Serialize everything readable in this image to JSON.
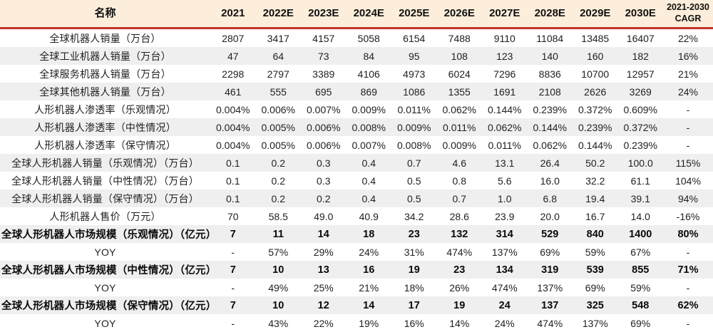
{
  "colors": {
    "header_bg": "#FCEEDB",
    "header_rule_red": "#C2332E",
    "row_alt_bg": "#EFEFEF",
    "row_bg": "#FFFFFF",
    "bottom_rule": "#2B2B2B",
    "text": "#1F1F1F"
  },
  "table": {
    "header": {
      "name_label": "名称",
      "columns": [
        "2021",
        "2022E",
        "2023E",
        "2024E",
        "2025E",
        "2026E",
        "2027E",
        "2028E",
        "2029E",
        "2030E"
      ],
      "cagr_line1": "2021-2030",
      "cagr_line2": "CAGR"
    },
    "rows": [
      {
        "label": "全球机器人销量（万台）",
        "bold": false,
        "values": [
          "2807",
          "3417",
          "4157",
          "5058",
          "6154",
          "7488",
          "9110",
          "11084",
          "13485",
          "16407"
        ],
        "cagr": "22%"
      },
      {
        "label": "全球工业机器人销量（万台）",
        "bold": false,
        "values": [
          "47",
          "64",
          "73",
          "84",
          "95",
          "108",
          "123",
          "140",
          "160",
          "182"
        ],
        "cagr": "16%"
      },
      {
        "label": "全球服务机器人销量（万台）",
        "bold": false,
        "values": [
          "2298",
          "2797",
          "3389",
          "4106",
          "4973",
          "6024",
          "7296",
          "8836",
          "10700",
          "12957"
        ],
        "cagr": "21%"
      },
      {
        "label": "全球其他机器人销量（万台）",
        "bold": false,
        "values": [
          "461",
          "555",
          "695",
          "869",
          "1086",
          "1355",
          "1691",
          "2108",
          "2626",
          "3269"
        ],
        "cagr": "24%"
      },
      {
        "label": "人形机器人渗透率（乐观情况）",
        "bold": false,
        "values": [
          "0.004%",
          "0.006%",
          "0.007%",
          "0.009%",
          "0.011%",
          "0.062%",
          "0.144%",
          "0.239%",
          "0.372%",
          "0.609%"
        ],
        "cagr": "-"
      },
      {
        "label": "人形机器人渗透率（中性情况）",
        "bold": false,
        "values": [
          "0.004%",
          "0.005%",
          "0.006%",
          "0.008%",
          "0.009%",
          "0.011%",
          "0.062%",
          "0.144%",
          "0.239%",
          "0.372%"
        ],
        "cagr": "-"
      },
      {
        "label": "人形机器人渗透率（保守情况）",
        "bold": false,
        "values": [
          "0.004%",
          "0.005%",
          "0.006%",
          "0.007%",
          "0.008%",
          "0.009%",
          "0.011%",
          "0.062%",
          "0.144%",
          "0.239%"
        ],
        "cagr": "-"
      },
      {
        "label": "全球人形机器人销量（乐观情况）（万台）",
        "bold": false,
        "values": [
          "0.1",
          "0.2",
          "0.3",
          "0.4",
          "0.7",
          "4.6",
          "13.1",
          "26.4",
          "50.2",
          "100.0"
        ],
        "cagr": "115%"
      },
      {
        "label": "全球人形机器人销量（中性情况）（万台）",
        "bold": false,
        "values": [
          "0.1",
          "0.2",
          "0.3",
          "0.4",
          "0.5",
          "0.8",
          "5.6",
          "16.0",
          "32.2",
          "61.1"
        ],
        "cagr": "104%"
      },
      {
        "label": "全球人形机器人销量（保守情况）（万台）",
        "bold": false,
        "values": [
          "0.1",
          "0.2",
          "0.2",
          "0.4",
          "0.5",
          "0.7",
          "1.0",
          "6.8",
          "19.4",
          "39.1"
        ],
        "cagr": "94%"
      },
      {
        "label": "人形机器人售价（万元）",
        "bold": false,
        "values": [
          "70",
          "58.5",
          "49.0",
          "40.9",
          "34.2",
          "28.6",
          "23.9",
          "20.0",
          "16.7",
          "14.0"
        ],
        "cagr": "-16%"
      },
      {
        "label": "全球人形机器人市场规模（乐观情况）（亿元）",
        "bold": true,
        "values": [
          "7",
          "11",
          "14",
          "18",
          "23",
          "132",
          "314",
          "529",
          "840",
          "1400"
        ],
        "cagr": "80%"
      },
      {
        "label": "YOY",
        "bold": false,
        "values": [
          "-",
          "57%",
          "29%",
          "24%",
          "31%",
          "474%",
          "137%",
          "69%",
          "59%",
          "67%"
        ],
        "cagr": "-"
      },
      {
        "label": "全球人形机器人市场规模（中性情况）（亿元）",
        "bold": true,
        "values": [
          "7",
          "10",
          "13",
          "16",
          "19",
          "23",
          "134",
          "319",
          "539",
          "855"
        ],
        "cagr": "71%"
      },
      {
        "label": "YOY",
        "bold": false,
        "values": [
          "-",
          "49%",
          "25%",
          "21%",
          "18%",
          "26%",
          "474%",
          "137%",
          "69%",
          "59%"
        ],
        "cagr": "-"
      },
      {
        "label": "全球人形机器人市场规模（保守情况）（亿元）",
        "bold": true,
        "values": [
          "7",
          "10",
          "12",
          "14",
          "17",
          "19",
          "24",
          "137",
          "325",
          "548"
        ],
        "cagr": "62%"
      },
      {
        "label": "YOY",
        "bold": false,
        "values": [
          "-",
          "43%",
          "22%",
          "19%",
          "16%",
          "14%",
          "24%",
          "474%",
          "137%",
          "69%"
        ],
        "cagr": "-"
      }
    ]
  }
}
